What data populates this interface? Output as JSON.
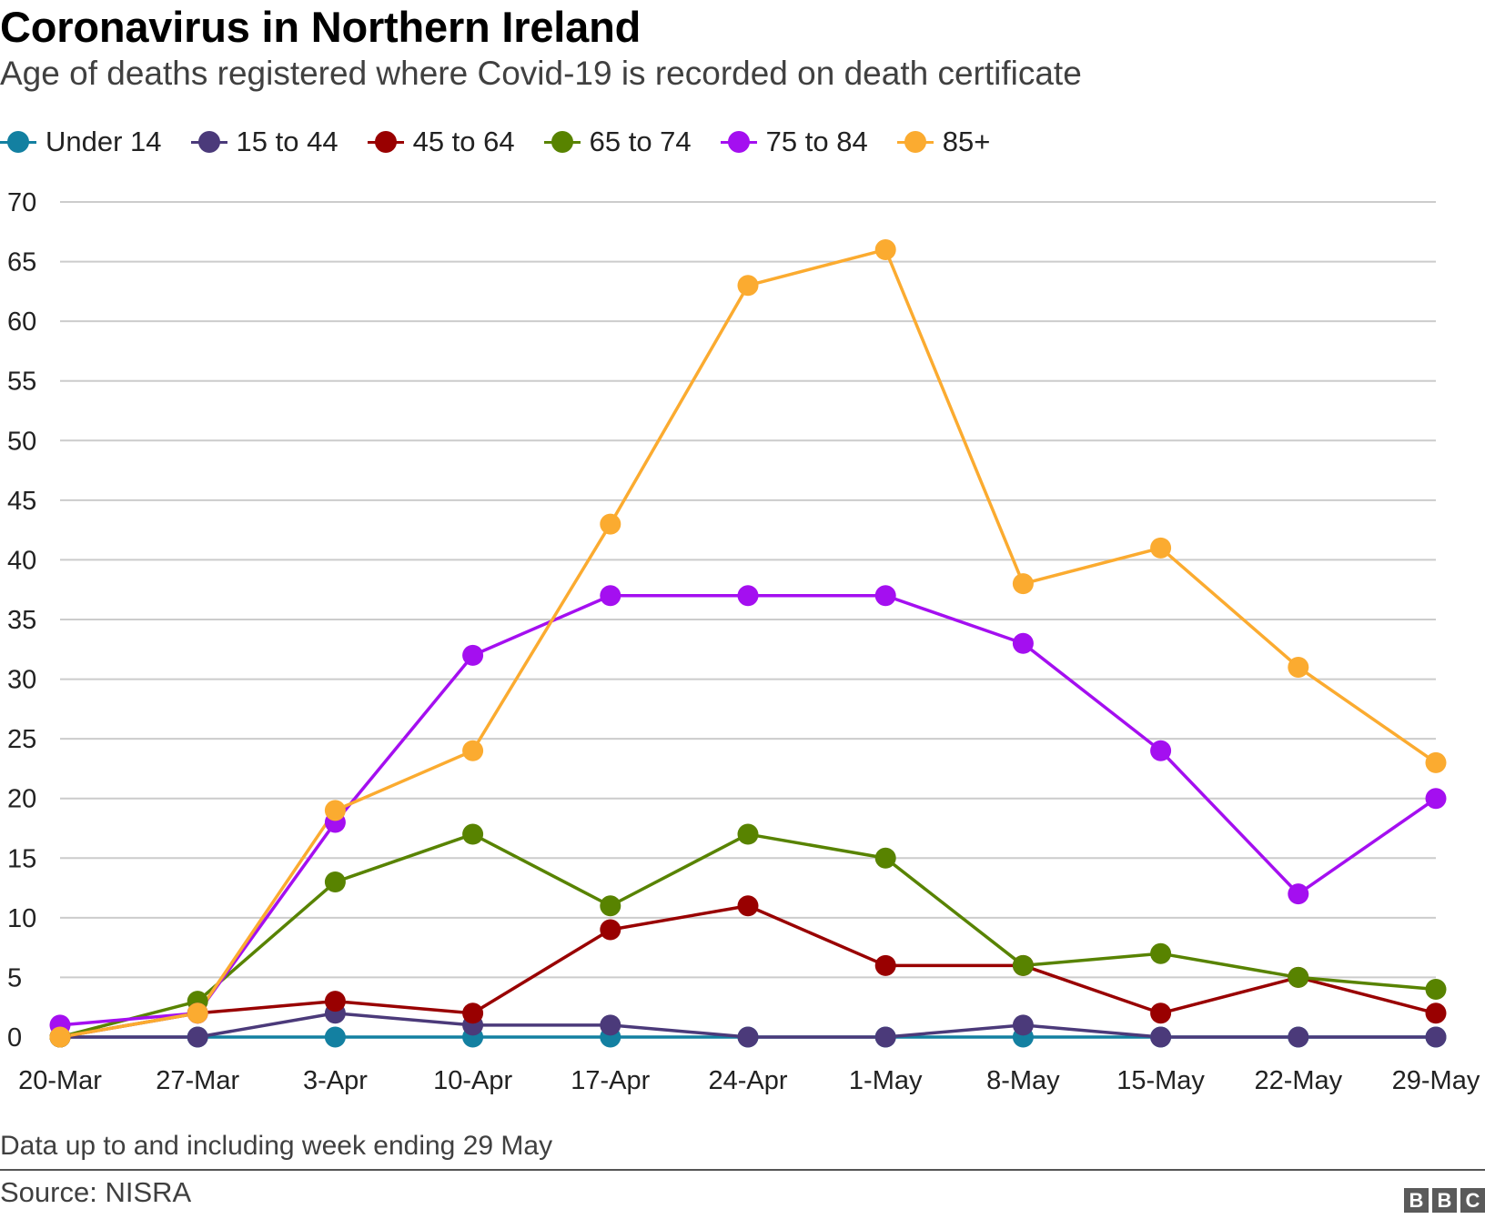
{
  "header": {
    "title": "Coronavirus in Northern Ireland",
    "subtitle": "Age of deaths registered where Covid-19 is recorded on death certificate"
  },
  "footer": {
    "note": "Data up to and including week ending 29 May",
    "source": "Source: NISRA",
    "logo_letters": [
      "B",
      "B",
      "C"
    ]
  },
  "chart_data": {
    "type": "line",
    "title": "Coronavirus in Northern Ireland",
    "subtitle": "Age of deaths registered where Covid-19 is recorded on death certificate",
    "categories": [
      "20-Mar",
      "27-Mar",
      "3-Apr",
      "10-Apr",
      "17-Apr",
      "24-Apr",
      "1-May",
      "8-May",
      "15-May",
      "22-May",
      "29-May"
    ],
    "ylim": [
      0,
      70
    ],
    "yticks": [
      0,
      5,
      10,
      15,
      20,
      25,
      30,
      35,
      40,
      45,
      50,
      55,
      60,
      65,
      70
    ],
    "grid": "horizontal",
    "legend_position": "top-left",
    "series": [
      {
        "name": "Under 14",
        "color": "#1380a1",
        "values": [
          0,
          0,
          0,
          0,
          0,
          0,
          0,
          0,
          0,
          0,
          0
        ]
      },
      {
        "name": "15 to 44",
        "color": "#4b3a7a",
        "values": [
          0,
          0,
          2,
          1,
          1,
          0,
          0,
          1,
          0,
          0,
          0
        ]
      },
      {
        "name": "45 to 64",
        "color": "#990000",
        "values": [
          0,
          2,
          3,
          2,
          9,
          11,
          6,
          6,
          2,
          5,
          2
        ]
      },
      {
        "name": "65 to 74",
        "color": "#588300",
        "values": [
          0,
          3,
          13,
          17,
          11,
          17,
          15,
          6,
          7,
          5,
          4
        ]
      },
      {
        "name": "75 to 84",
        "color": "#a40ff0",
        "values": [
          1,
          2,
          18,
          32,
          37,
          37,
          37,
          33,
          24,
          12,
          20
        ]
      },
      {
        "name": "85+",
        "color": "#fbab30",
        "values": [
          0,
          2,
          19,
          24,
          43,
          63,
          66,
          38,
          41,
          31,
          23
        ]
      }
    ]
  }
}
